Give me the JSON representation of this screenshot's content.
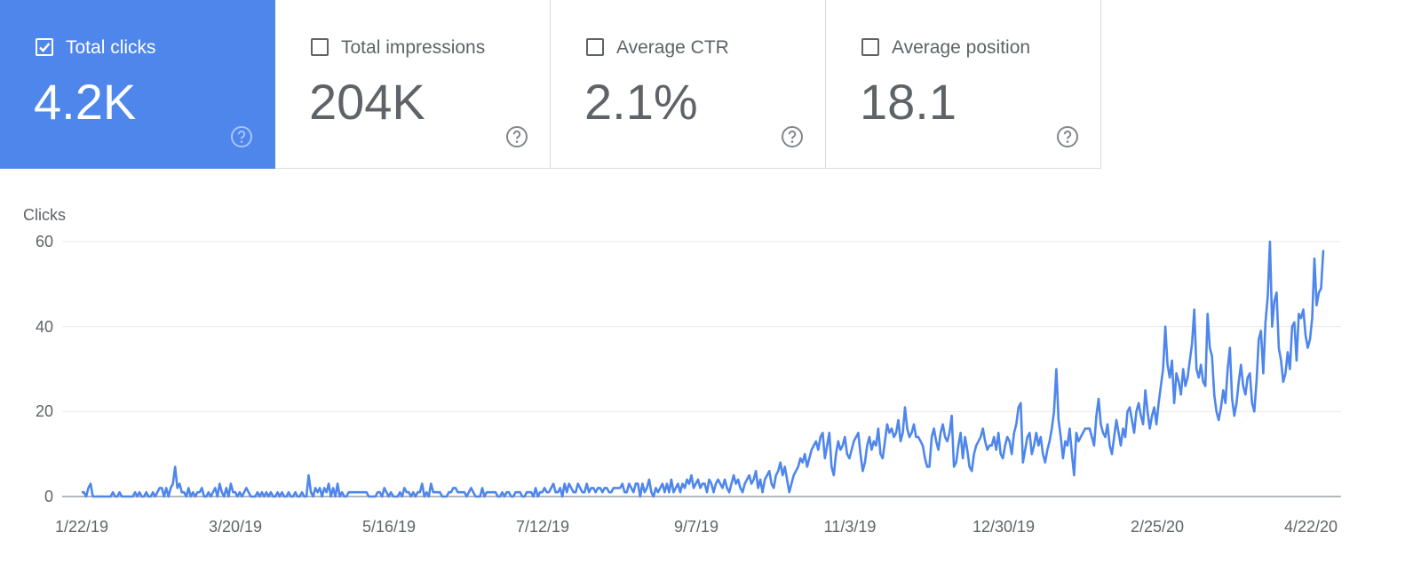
{
  "metrics": [
    {
      "label": "Total clicks",
      "value": "4.2K",
      "checked": true
    },
    {
      "label": "Total impressions",
      "value": "204K",
      "checked": false
    },
    {
      "label": "Average CTR",
      "value": "2.1%",
      "checked": false
    },
    {
      "label": "Average position",
      "value": "18.1",
      "checked": false
    }
  ],
  "colors": {
    "accent": "#4e86ec",
    "line": "#4e86ec",
    "grid": "#e8eaed",
    "text": "#5f6368"
  },
  "icons": {
    "checkbox": "checkbox-icon",
    "help": "help-circle-icon"
  },
  "chart_data": {
    "type": "line",
    "ylabel": "Clicks",
    "ylim": [
      0,
      60
    ],
    "yticks": [
      "0",
      "20",
      "40",
      "60"
    ],
    "xticks": [
      "1/22/19",
      "3/20/19",
      "5/16/19",
      "7/12/19",
      "9/7/19",
      "11/3/19",
      "12/30/19",
      "2/25/20",
      "4/22/20"
    ],
    "x_start": "2019-01-22",
    "x_end": "2020-04-22",
    "series": [
      {
        "values": [
          1,
          1,
          0,
          2,
          3,
          0,
          0,
          0,
          0,
          0,
          0,
          0,
          0,
          0,
          1,
          0,
          0,
          1,
          0,
          0,
          0,
          0,
          0,
          0,
          1,
          0,
          1,
          0,
          0,
          1,
          0,
          0,
          1,
          0,
          1,
          2,
          2,
          0,
          2,
          0,
          2,
          3,
          7,
          2,
          3,
          1,
          1,
          0,
          2,
          0,
          1,
          0,
          1,
          1,
          2,
          0,
          0,
          1,
          0,
          1,
          2,
          0,
          3,
          1,
          0,
          2,
          0,
          3,
          1,
          1,
          0,
          1,
          0,
          1,
          2,
          1,
          0,
          0,
          0,
          1,
          0,
          1,
          0,
          1,
          0,
          1,
          0,
          0,
          1,
          0,
          1,
          0,
          0,
          1,
          0,
          0,
          1,
          0,
          0,
          1,
          0,
          0,
          5,
          1,
          0,
          2,
          1,
          2,
          0,
          2,
          1,
          3,
          0,
          2,
          0,
          3,
          0,
          1,
          0,
          0,
          1,
          1,
          1,
          1,
          1,
          1,
          1,
          1,
          1,
          0,
          0,
          0,
          0,
          1,
          1,
          0,
          2,
          1,
          0,
          1,
          0,
          0,
          0,
          1,
          0,
          2,
          1,
          1,
          0,
          1,
          0,
          1,
          1,
          3,
          0,
          1,
          0,
          3,
          1,
          1,
          1,
          1,
          0,
          0,
          0,
          1,
          1,
          2,
          2,
          1,
          1,
          1,
          1,
          0,
          1,
          2,
          1,
          0,
          0,
          0,
          2,
          0,
          1,
          1,
          1,
          1,
          1,
          0,
          0,
          1,
          0,
          1,
          1,
          0,
          0,
          1,
          1,
          1,
          0,
          0,
          1,
          1,
          1,
          0,
          2,
          0,
          1,
          1,
          2,
          1,
          1,
          2,
          3,
          1,
          1,
          2,
          0,
          3,
          1,
          3,
          2,
          1,
          1,
          3,
          2,
          1,
          1,
          3,
          1,
          2,
          2,
          1,
          2,
          2,
          1,
          2,
          2,
          1,
          1,
          2,
          2,
          2,
          2,
          3,
          1,
          1,
          3,
          2,
          1,
          3,
          3,
          0,
          3,
          1,
          2,
          4,
          1,
          0,
          2,
          1,
          2,
          3,
          1,
          3,
          1,
          4,
          1,
          2,
          3,
          1,
          3,
          2,
          4,
          3,
          5,
          2,
          3,
          4,
          2,
          3,
          3,
          1,
          4,
          3,
          1,
          3,
          4,
          3,
          2,
          4,
          2,
          1,
          3,
          5,
          3,
          4,
          2,
          1,
          3,
          4,
          5,
          3,
          4,
          6,
          2,
          4,
          1,
          4,
          5,
          6,
          3,
          2,
          5,
          6,
          8,
          5,
          7,
          4,
          1,
          3,
          5,
          6,
          7,
          9,
          8,
          10,
          7,
          9,
          11,
          12,
          13,
          11,
          14,
          15,
          9,
          12,
          15,
          7,
          5,
          10,
          13,
          11,
          12,
          14,
          10,
          9,
          11,
          13,
          14,
          15,
          10,
          6,
          8,
          12,
          14,
          11,
          13,
          12,
          16,
          10,
          9,
          13,
          17,
          15,
          16,
          14,
          15,
          18,
          13,
          15,
          21,
          16,
          14,
          15,
          17,
          14,
          14,
          13,
          12,
          9,
          7,
          7,
          14,
          16,
          13,
          11,
          15,
          17,
          14,
          13,
          15,
          19,
          7,
          8,
          12,
          15,
          9,
          14,
          11,
          7,
          6,
          10,
          12,
          13,
          14,
          16,
          13,
          11,
          12,
          12,
          14,
          11,
          15,
          10,
          9,
          12,
          14,
          13,
          10,
          15,
          17,
          21,
          22,
          8,
          11,
          14,
          15,
          10,
          12,
          15,
          12,
          14,
          10,
          8,
          11,
          13,
          16,
          20,
          30,
          18,
          14,
          9,
          13,
          12,
          16,
          10,
          5,
          15,
          13,
          14,
          15,
          16,
          16,
          16,
          14,
          12,
          19,
          23,
          17,
          15,
          14,
          17,
          12,
          10,
          14,
          18,
          15,
          12,
          16,
          14,
          20,
          21,
          18,
          15,
          20,
          22,
          19,
          17,
          25,
          20,
          16,
          19,
          21,
          17,
          22,
          26,
          30,
          40,
          31,
          28,
          32,
          22,
          29,
          27,
          24,
          30,
          26,
          28,
          32,
          36,
          44,
          30,
          28,
          31,
          27,
          26,
          43,
          35,
          33,
          24,
          20,
          18,
          21,
          25,
          22,
          30,
          35,
          23,
          19,
          22,
          27,
          31,
          26,
          24,
          28,
          29,
          22,
          20,
          27,
          37,
          39,
          29,
          41,
          47,
          60,
          40,
          46,
          48,
          35,
          32,
          27,
          29,
          34,
          30,
          40,
          41,
          32,
          43,
          42,
          44,
          38,
          35,
          37,
          42,
          56,
          45,
          48,
          49,
          58
        ]
      }
    ]
  }
}
